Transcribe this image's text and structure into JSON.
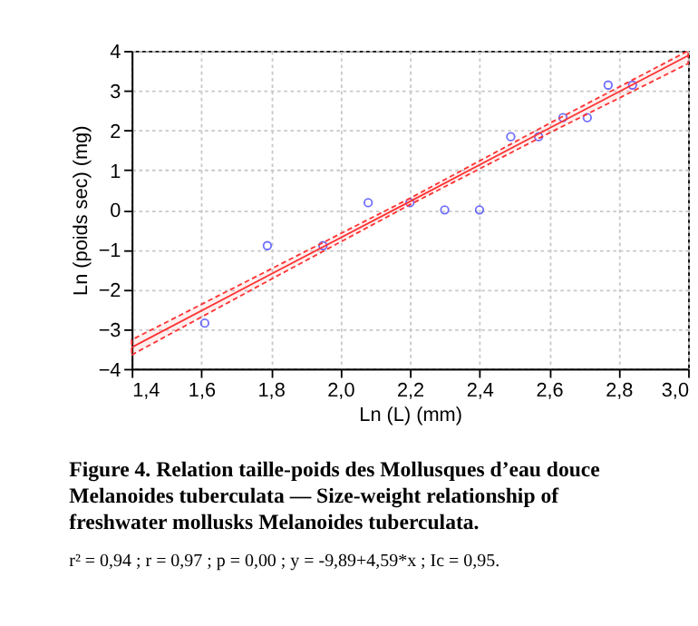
{
  "chart_data": {
    "type": "scatter",
    "xlabel": "Ln (L) (mm)",
    "ylabel": "Ln (poids sec) (mg)",
    "xlim": [
      1.4,
      3.0
    ],
    "ylim": [
      -4,
      4
    ],
    "xticks": [
      {
        "value": 1.4,
        "label": "1,4"
      },
      {
        "value": 1.6,
        "label": "1,6"
      },
      {
        "value": 1.8,
        "label": "1,8"
      },
      {
        "value": 2.0,
        "label": "2,0"
      },
      {
        "value": 2.2,
        "label": "2,2"
      },
      {
        "value": 2.4,
        "label": "2,4"
      },
      {
        "value": 2.6,
        "label": "2,6"
      },
      {
        "value": 2.8,
        "label": "2,8"
      },
      {
        "value": 3.0,
        "label": "3,0"
      }
    ],
    "yticks": [
      -4,
      -3,
      -2,
      -1,
      0,
      1,
      2,
      3,
      4
    ],
    "grid": true,
    "marker": "circle",
    "series": [
      {
        "color": "#3333ff",
        "x": [
          1.61,
          1.79,
          1.95,
          2.08,
          2.2,
          2.3,
          2.4,
          2.49,
          2.57,
          2.64,
          2.71,
          2.77,
          2.84
        ],
        "values": [
          -2.85,
          -0.9,
          -0.9,
          0.18,
          0.18,
          0,
          0,
          1.84,
          1.84,
          2.32,
          2.32,
          3.14,
          3.14
        ]
      },
      {
        "type": "line",
        "color": "#ff3333",
        "line_style": "solid",
        "marker": "none",
        "x": [
          1.4,
          1.8,
          2.2,
          2.6,
          3.0
        ],
        "values": [
          -3.46,
          -1.62,
          0.21,
          2.05,
          3.88
        ],
        "lower": [
          -3.65,
          -1.75,
          0.13,
          1.93,
          3.68
        ],
        "upper": [
          -3.27,
          -1.49,
          0.29,
          2.17,
          4.0
        ]
      }
    ],
    "annotations": [
      "Figure 4. Relation taille-poids des Mollusques d’eau douce Melanoides tuberculata — Size-weight relationship of freshwater mollusks Melanoides tuberculata.",
      "r² = 0,94 ; r = 0,97 ; p = 0,00 ; y = -9,89+4,59*x ; Ic = 0,95."
    ]
  }
}
